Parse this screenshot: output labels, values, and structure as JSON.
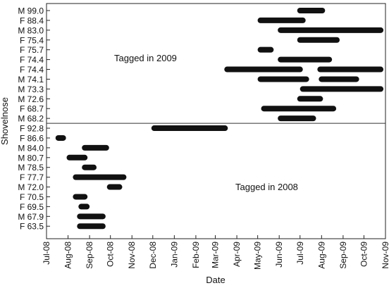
{
  "chart_data": {
    "type": "gantt",
    "xlabel": "Date",
    "ylabel": "Shovelnose",
    "x_ticks": [
      "Jul-08",
      "Aug-08",
      "Sep-08",
      "Oct-08",
      "Nov-08",
      "Dec-08",
      "Jan-09",
      "Feb-09",
      "Mar-09",
      "Apr-09",
      "May-09",
      "Jun-09",
      "Jul-09",
      "Aug-09",
      "Sep-09",
      "Oct-09",
      "Nov-09"
    ],
    "xlim": [
      "2008-07-01",
      "2009-11-01"
    ],
    "grid": false,
    "annotations": [
      "Tagged in 2009",
      "Tagged in 2008"
    ],
    "divider_between": [
      "M 68.2",
      "F 92.8"
    ],
    "fish": [
      {
        "label": "M 99.0",
        "segments": [
          [
            "2009-07-01",
            "2009-08-02"
          ]
        ]
      },
      {
        "label": "F 88.4",
        "segments": [
          [
            "2009-05-05",
            "2009-07-05"
          ]
        ]
      },
      {
        "label": "M 83.0",
        "segments": [
          [
            "2009-06-03",
            "2009-10-25"
          ]
        ]
      },
      {
        "label": "F 75.4",
        "segments": [
          [
            "2009-07-01",
            "2009-08-23"
          ]
        ]
      },
      {
        "label": "F 75.7",
        "segments": [
          [
            "2009-05-05",
            "2009-05-20"
          ]
        ]
      },
      {
        "label": "F 74.4",
        "segments": [
          [
            "2009-06-03",
            "2009-08-12"
          ]
        ]
      },
      {
        "label": "F 74.4",
        "segments": [
          [
            "2009-03-18",
            "2009-07-01"
          ],
          [
            "2009-07-30",
            "2009-10-25"
          ]
        ]
      },
      {
        "label": "M 74.1",
        "segments": [
          [
            "2009-05-05",
            "2009-07-10"
          ],
          [
            "2009-08-01",
            "2009-09-20"
          ]
        ]
      },
      {
        "label": "M 73.3",
        "segments": [
          [
            "2009-07-05",
            "2009-10-25"
          ]
        ]
      },
      {
        "label": "M 72.6",
        "segments": [
          [
            "2009-07-01",
            "2009-07-30"
          ]
        ]
      },
      {
        "label": "F 68.7",
        "segments": [
          [
            "2009-05-10",
            "2009-08-18"
          ]
        ]
      },
      {
        "label": "M 68.2",
        "segments": [
          [
            "2009-06-03",
            "2009-07-20"
          ]
        ]
      },
      {
        "label": "F 92.8",
        "segments": [
          [
            "2008-12-03",
            "2009-03-15"
          ]
        ]
      },
      {
        "label": "F 86.6",
        "segments": [
          [
            "2008-07-18",
            "2008-07-25"
          ]
        ]
      },
      {
        "label": "M 84.0",
        "segments": [
          [
            "2008-08-25",
            "2008-09-25"
          ]
        ]
      },
      {
        "label": "M 80.7",
        "segments": [
          [
            "2008-08-03",
            "2008-08-25"
          ]
        ]
      },
      {
        "label": "M 78.5",
        "segments": [
          [
            "2008-08-25",
            "2008-09-07"
          ]
        ]
      },
      {
        "label": "F 77.7",
        "segments": [
          [
            "2008-08-12",
            "2008-10-20"
          ]
        ]
      },
      {
        "label": "M 72.0",
        "segments": [
          [
            "2008-09-30",
            "2008-10-14"
          ]
        ]
      },
      {
        "label": "F 70.5",
        "segments": [
          [
            "2008-08-12",
            "2008-08-25"
          ]
        ]
      },
      {
        "label": "F 69.5",
        "segments": [
          [
            "2008-08-20",
            "2008-08-28"
          ]
        ]
      },
      {
        "label": "M 67.9",
        "segments": [
          [
            "2008-08-18",
            "2008-09-20"
          ]
        ]
      },
      {
        "label": "F 63.5",
        "segments": [
          [
            "2008-08-18",
            "2008-09-20"
          ]
        ]
      }
    ]
  }
}
